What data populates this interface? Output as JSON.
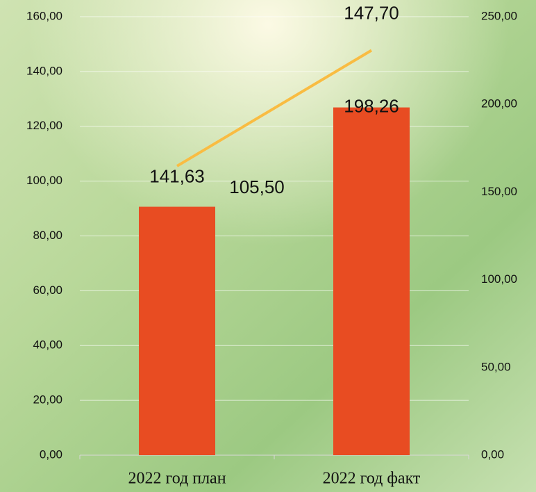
{
  "chart_data": {
    "type": "combo",
    "categories": [
      "2022 год план",
      "2022 год факт"
    ],
    "series": [
      {
        "type": "bar",
        "axis": "y2",
        "color": "#e84c22",
        "values": [
          141.63,
          198.26
        ],
        "value_labels": [
          "141,63",
          "198,26"
        ]
      },
      {
        "type": "line",
        "color": "#f9bc42",
        "values": [
          105.5,
          147.7
        ],
        "value_labels": [
          "105,50",
          "147,70"
        ]
      }
    ],
    "ylim": [
      0,
      160
    ],
    "yticks": [
      {
        "value": 0,
        "label": "0,00"
      },
      {
        "value": 20,
        "label": "20,00"
      },
      {
        "value": 40,
        "label": "40,00"
      },
      {
        "value": 60,
        "label": "60,00"
      },
      {
        "value": 80,
        "label": "80,00"
      },
      {
        "value": 100,
        "label": "100,00"
      },
      {
        "value": 120,
        "label": "120,00"
      },
      {
        "value": 140,
        "label": "140,00"
      },
      {
        "value": 160,
        "label": "160,00"
      }
    ],
    "y2lim": [
      0,
      250
    ],
    "y2ticks": [
      {
        "value": 0,
        "label": "0,00"
      },
      {
        "value": 50,
        "label": "50,00"
      },
      {
        "value": 100,
        "label": "100,00"
      },
      {
        "value": 150,
        "label": "150,00"
      },
      {
        "value": 200,
        "label": "200,00"
      },
      {
        "value": 250,
        "label": "250,00"
      }
    ],
    "grid": true
  }
}
